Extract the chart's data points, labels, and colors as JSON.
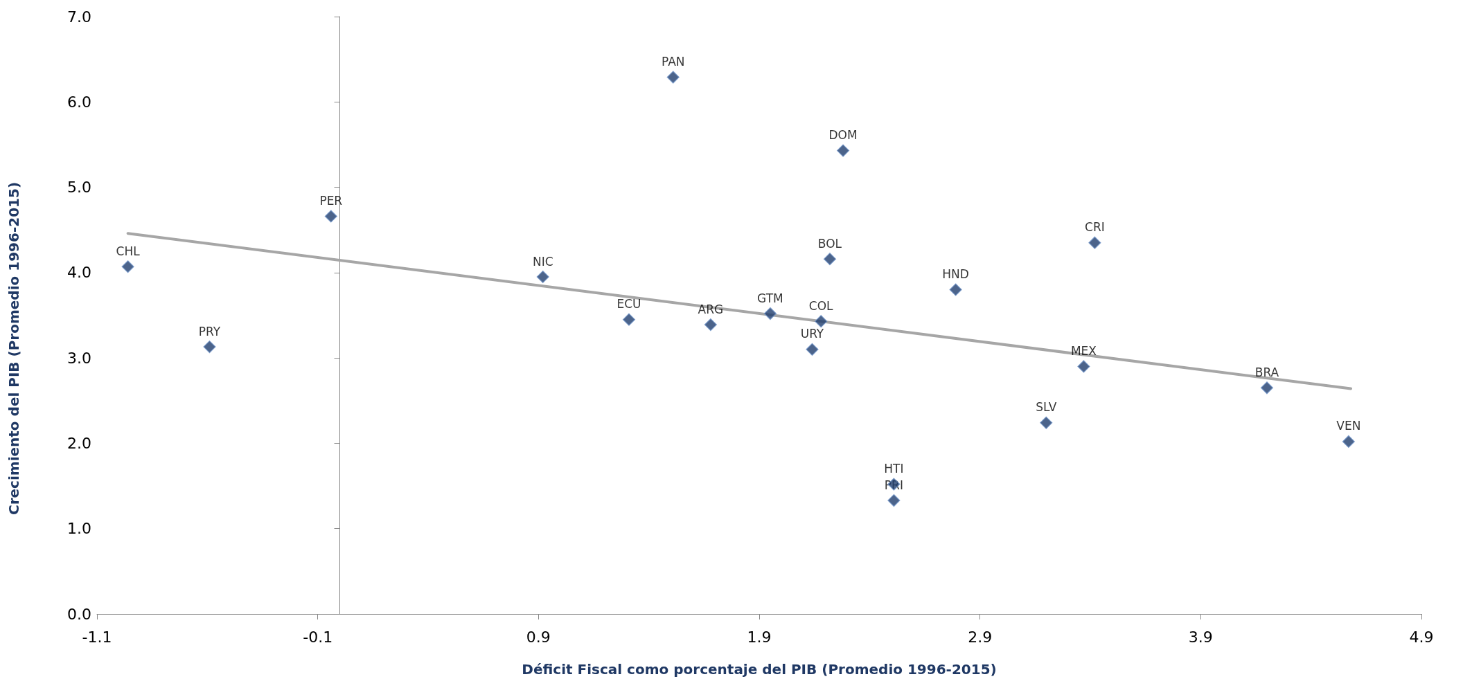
{
  "chart_data": {
    "type": "scatter",
    "xlabel": "Déficit Fiscal como porcentaje del PIB (Promedio 1996-2015)",
    "ylabel": "Crecimiento del PIB (Promedio 1996-2015)",
    "xlim": [
      -1.1,
      4.9
    ],
    "xticks": [
      -1.1,
      -0.1,
      0.9,
      1.9,
      2.9,
      3.9,
      4.9
    ],
    "ylim": [
      0,
      7
    ],
    "yticks": [
      {
        "value": 0,
        "label": "0.0"
      },
      {
        "value": 1,
        "label": "1.0"
      },
      {
        "value": 2,
        "label": "2.0"
      },
      {
        "value": 3,
        "label": "3.0"
      },
      {
        "value": 4,
        "label": "4.0"
      },
      {
        "value": 5,
        "label": "5.0"
      },
      {
        "value": 6,
        "label": "6.0"
      },
      {
        "value": 7,
        "label": "7.0"
      }
    ],
    "grid": false,
    "marker": "diamond",
    "series": [
      {
        "color": "#1f3d6e",
        "x": [
          -0.96,
          -0.59,
          -0.04,
          0.92,
          1.31,
          1.68,
          1.51,
          1.95,
          2.18,
          2.14,
          2.22,
          2.28,
          2.51,
          2.51,
          2.79,
          3.2,
          3.37,
          3.42,
          4.2,
          4.57
        ],
        "values": [
          4.07,
          3.13,
          4.66,
          3.95,
          3.45,
          3.39,
          6.29,
          3.52,
          3.43,
          3.1,
          4.16,
          5.43,
          1.52,
          1.33,
          3.8,
          2.24,
          2.9,
          4.35,
          2.65,
          2.02
        ]
      },
      {
        "type": "line",
        "color": "#a6a6a6",
        "marker": "none",
        "x": [
          -0.96,
          4.58
        ],
        "values": [
          4.46,
          2.64
        ]
      }
    ],
    "annotations": [
      {
        "text": "CHL",
        "x": -0.96,
        "y": 4.07
      },
      {
        "text": "PRY",
        "x": -0.59,
        "y": 3.13
      },
      {
        "text": "PER",
        "x": -0.04,
        "y": 4.66
      },
      {
        "text": "NIC",
        "x": 0.92,
        "y": 3.95
      },
      {
        "text": "ECU",
        "x": 1.31,
        "y": 3.45
      },
      {
        "text": "ARG",
        "x": 1.68,
        "y": 3.39
      },
      {
        "text": "PAN",
        "x": 1.51,
        "y": 6.29
      },
      {
        "text": "GTM",
        "x": 1.95,
        "y": 3.52
      },
      {
        "text": "COL",
        "x": 2.18,
        "y": 3.43
      },
      {
        "text": "URY",
        "x": 2.14,
        "y": 3.1
      },
      {
        "text": "BOL",
        "x": 2.22,
        "y": 4.16
      },
      {
        "text": "DOM",
        "x": 2.28,
        "y": 5.43
      },
      {
        "text": "HTI",
        "x": 2.51,
        "y": 1.52
      },
      {
        "text": "PRI",
        "x": 2.51,
        "y": 1.33
      },
      {
        "text": "HND",
        "x": 2.79,
        "y": 3.8
      },
      {
        "text": "SLV",
        "x": 3.2,
        "y": 2.24
      },
      {
        "text": "MEX",
        "x": 3.37,
        "y": 2.9
      },
      {
        "text": "CRI",
        "x": 3.42,
        "y": 4.35
      },
      {
        "text": "BRA",
        "x": 4.2,
        "y": 2.65
      },
      {
        "text": "VEN",
        "x": 4.57,
        "y": 2.02
      }
    ]
  }
}
